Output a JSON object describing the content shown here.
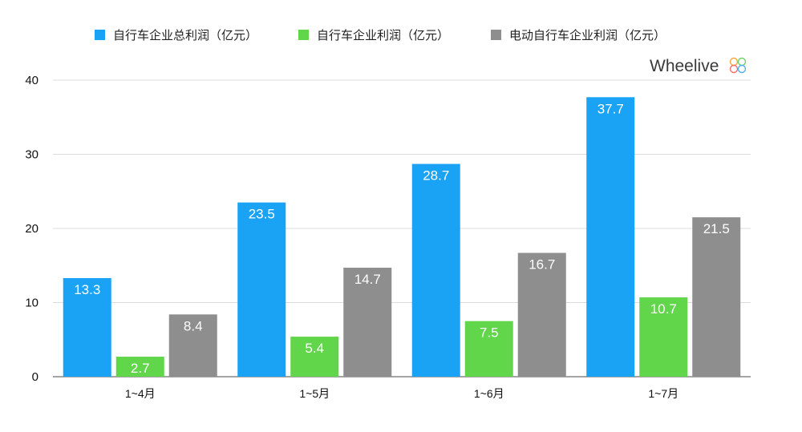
{
  "brand": {
    "name": "Wheelive"
  },
  "chart_data": {
    "type": "bar",
    "categories": [
      "1~4月",
      "1~5月",
      "1~6月",
      "1~7月"
    ],
    "series": [
      {
        "name": "自行车企业总利润（亿元）",
        "values": [
          13.3,
          23.5,
          28.7,
          37.7
        ],
        "color": "#1AA3F5"
      },
      {
        "name": "自行车企业利润（亿元）",
        "values": [
          2.7,
          5.4,
          7.5,
          10.7
        ],
        "color": "#62D64A"
      },
      {
        "name": "电动自行车企业利润（亿元）",
        "values": [
          8.4,
          14.7,
          16.7,
          21.5
        ],
        "color": "#8E8E8E"
      }
    ],
    "ylim": [
      0,
      40
    ],
    "yticks": [
      0,
      10,
      20,
      30,
      40
    ],
    "grid": true,
    "legend": "top",
    "data_labels": true
  }
}
